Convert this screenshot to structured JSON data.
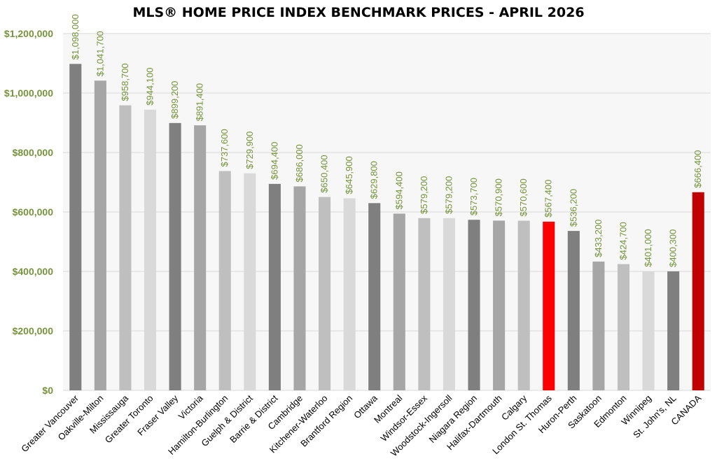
{
  "chart_data": {
    "type": "bar",
    "title": "MLS® HOME PRICE INDEX BENCHMARK PRICES - APRIL 2026",
    "categories": [
      "Greater Vancouver",
      "Oakville-Milton",
      "Mississauga",
      "Greater Toronto",
      "Fraser Valley",
      "Victoria",
      "Hamilton-Burlington",
      "Guelph & District",
      "Barrie & District",
      "Cambridge",
      "Kitchener-Waterloo",
      "Brantford Region",
      "Ottawa",
      "Montreal",
      "Windsor-Essex",
      "Woodstock-Ingersoll",
      "Niagara Region",
      "Halifax-Dartmouth",
      "Calgary",
      "London St. Thomas",
      "Huron-Perth",
      "Saskatoon",
      "Edmonton",
      "Winnipeg",
      "St. John's, NL",
      "CANADA"
    ],
    "values": [
      1098000,
      1041700,
      958700,
      944100,
      899200,
      891400,
      737600,
      729900,
      694400,
      686000,
      650400,
      645900,
      629800,
      594400,
      579200,
      579200,
      573700,
      570900,
      570600,
      567400,
      536200,
      433200,
      424700,
      401000,
      400300,
      666400
    ],
    "data_labels": [
      "$1,098,000",
      "$1,041,700",
      "$958,700",
      "$944,100",
      "$899,200",
      "$891,400",
      "$737,600",
      "$729,900",
      "$694,400",
      "$686,000",
      "$650,400",
      "$645,900",
      "$629,800",
      "$594,400",
      "$579,200",
      "$579,200",
      "$573,700",
      "$570,900",
      "$570,600",
      "$567,400",
      "$536,200",
      "$433,200",
      "$424,700",
      "$401,000",
      "$400,300",
      "$666,400"
    ],
    "bar_colors": [
      "#7f7f7f",
      "#a6a6a6",
      "#bfbfbf",
      "#d9d9d9",
      "#7f7f7f",
      "#a6a6a6",
      "#bfbfbf",
      "#d9d9d9",
      "#7f7f7f",
      "#a6a6a6",
      "#bfbfbf",
      "#d9d9d9",
      "#7f7f7f",
      "#a6a6a6",
      "#bfbfbf",
      "#d9d9d9",
      "#7f7f7f",
      "#a6a6a6",
      "#bfbfbf",
      "#ff0000",
      "#7f7f7f",
      "#a6a6a6",
      "#bfbfbf",
      "#d9d9d9",
      "#7f7f7f",
      "#c00000"
    ],
    "yticks": [
      "$0",
      "$200,000",
      "$400,000",
      "$600,000",
      "$800,000",
      "$1,000,000",
      "$1,200,000"
    ],
    "ylim": [
      0,
      1200000
    ],
    "grid": true,
    "label_color": "#76933c"
  }
}
